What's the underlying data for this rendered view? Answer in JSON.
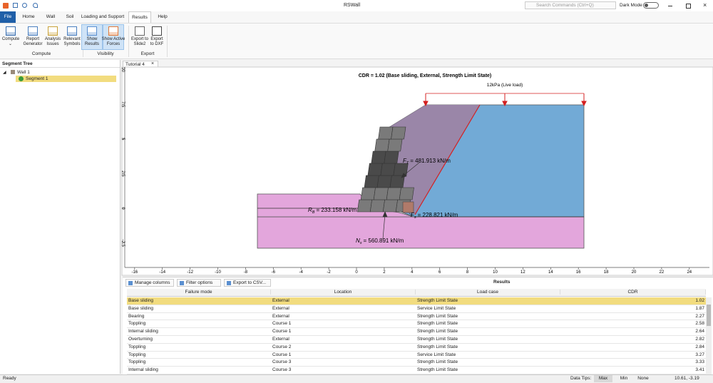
{
  "window": {
    "title": "RSWall",
    "search_placeholder": "Search Commands (Ctrl+Q)",
    "dark_mode": "Dark Mode"
  },
  "menu_tabs": [
    "File",
    "Home",
    "Wall",
    "Soil",
    "Loading and Support",
    "Results",
    "Help"
  ],
  "ribbon": {
    "groups": [
      {
        "label": "Compute",
        "buttons": [
          [
            "Compute"
          ],
          [
            "Report",
            "Generator"
          ],
          [
            "Analysis",
            "Issues"
          ],
          [
            "Relevant",
            "Symbols"
          ]
        ]
      },
      {
        "label": "Visibility",
        "buttons": [
          [
            "Show",
            "Results"
          ],
          [
            "Show Active",
            "Forces"
          ]
        ]
      },
      {
        "label": "Export",
        "buttons": [
          [
            "Export to",
            "Slide2"
          ],
          [
            "Export",
            "to DXF"
          ]
        ]
      }
    ]
  },
  "segment_tree": {
    "title": "Segment Tree",
    "items": [
      "Wall 1",
      "Segment 1"
    ]
  },
  "document_tab": "Tutorial 4",
  "drawing": {
    "title": "CDR = 1.02 (Base sliding, External, Strength Limit State)",
    "load_label": "12kPa (Live load)",
    "forces": [
      {
        "symbol": "F",
        "sub": "T",
        "value": "= 481.913 kN/m"
      },
      {
        "symbol": "R",
        "sub": "B",
        "value": "= 233.158 kN/m"
      },
      {
        "symbol": "F",
        "sub": "s",
        "value": "= 228.821 kN/m"
      },
      {
        "symbol": "N",
        "sub": "s",
        "value": "= 560.891 kN/m"
      }
    ],
    "xticks": [
      -16,
      -14,
      -12,
      -10,
      -8,
      -6,
      -4,
      -2,
      0,
      2,
      4,
      6,
      8,
      10,
      12,
      14,
      16,
      18,
      20,
      22,
      24
    ],
    "yticks": [
      -2.5,
      0,
      2.5,
      5,
      7.5,
      10
    ]
  },
  "results": {
    "toolbar": [
      "Manage columns",
      "Filter options",
      "Export to CSV..."
    ],
    "title": "Results",
    "columns": [
      "Failure mode",
      "Location",
      "Load case",
      "CDR"
    ],
    "rows": [
      [
        "Base sliding",
        "External",
        "Strength Limit State",
        "1.02"
      ],
      [
        "Base sliding",
        "External",
        "Service Limit State",
        "1.87"
      ],
      [
        "Bearing",
        "External",
        "Strength Limit State",
        "2.27"
      ],
      [
        "Toppling",
        "Course 1",
        "Strength Limit State",
        "2.58"
      ],
      [
        "Internal sliding",
        "Course 1",
        "Strength Limit State",
        "2.64"
      ],
      [
        "Overturning",
        "External",
        "Strength Limit State",
        "2.82"
      ],
      [
        "Toppling",
        "Course 2",
        "Strength Limit State",
        "2.84"
      ],
      [
        "Toppling",
        "Course 1",
        "Service Limit State",
        "3.27"
      ],
      [
        "Toppling",
        "Course 3",
        "Strength Limit State",
        "3.33"
      ],
      [
        "Internal sliding",
        "Course 3",
        "Strength Limit State",
        "3.41"
      ]
    ]
  },
  "status": {
    "ready": "Ready",
    "data_tips": "Data Tips:",
    "options": [
      "Max",
      "Min",
      "None"
    ],
    "coordinates": "10.61, -3.19"
  }
}
